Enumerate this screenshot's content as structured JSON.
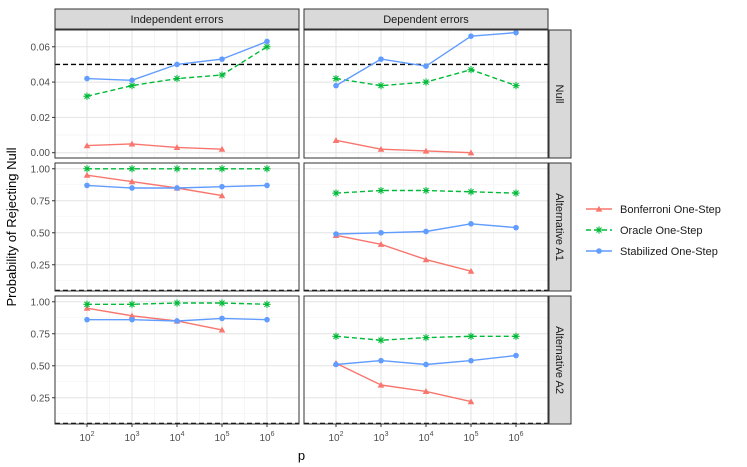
{
  "chart_data": {
    "type": "line",
    "xlabel": "p",
    "ylabel": "Probability of Rejecting Null",
    "column_facets": [
      "Independent errors",
      "Dependent errors"
    ],
    "row_facets": [
      "Null",
      "Alternative A1",
      "Alternative A2"
    ],
    "x": [
      "10^2",
      "10^3",
      "10^4",
      "10^5",
      "10^6"
    ],
    "x_tick_labels": [
      {
        "base": "10",
        "exp": "2"
      },
      {
        "base": "10",
        "exp": "3"
      },
      {
        "base": "10",
        "exp": "4"
      },
      {
        "base": "10",
        "exp": "5"
      },
      {
        "base": "10",
        "exp": "6"
      }
    ],
    "x_scale": "log10",
    "reference_line": {
      "value": 0.05,
      "style": "dashed",
      "color": "#000000"
    },
    "legend_placement": "right",
    "grid": true,
    "rows": [
      {
        "ylim": [
          -0.003,
          0.0695
        ],
        "y_ticks": [
          0,
          0.02,
          0.04,
          0.06
        ],
        "y_tick_labels": [
          "0.00",
          "0.02",
          "0.04",
          "0.06"
        ]
      },
      {
        "ylim": [
          0.045,
          1.045
        ],
        "y_ticks": [
          0.25,
          0.5,
          0.75,
          1.0
        ],
        "y_tick_labels": [
          "0.25",
          "0.50",
          "0.75",
          "1.00"
        ]
      },
      {
        "ylim": [
          0.045,
          1.045
        ],
        "y_ticks": [
          0.25,
          0.5,
          0.75,
          1.0
        ],
        "y_tick_labels": [
          "0.25",
          "0.50",
          "0.75",
          "1.00"
        ]
      }
    ],
    "series": [
      {
        "name": "Bonferroni One-Step",
        "color": "#F8766D",
        "line": "solid",
        "marker": "triangle"
      },
      {
        "name": "Oracle One-Step",
        "color": "#00BA38",
        "line": "dashed",
        "marker": "asterisk"
      },
      {
        "name": "Stabilized One-Step",
        "color": "#619CFF",
        "line": "solid",
        "marker": "circle"
      }
    ],
    "panels": [
      {
        "row": 0,
        "col": 0,
        "values": {
          "Bonferroni One-Step": [
            0.004,
            0.005,
            0.003,
            0.002,
            null
          ],
          "Oracle One-Step": [
            0.032,
            0.038,
            0.042,
            0.044,
            0.06
          ],
          "Stabilized One-Step": [
            0.042,
            0.041,
            0.05,
            0.053,
            0.063
          ]
        }
      },
      {
        "row": 0,
        "col": 1,
        "values": {
          "Bonferroni One-Step": [
            0.007,
            0.002,
            0.001,
            0.0,
            null
          ],
          "Oracle One-Step": [
            0.042,
            0.038,
            0.04,
            0.047,
            0.038
          ],
          "Stabilized One-Step": [
            0.038,
            0.053,
            0.049,
            0.066,
            0.068
          ]
        }
      },
      {
        "row": 1,
        "col": 0,
        "values": {
          "Bonferroni One-Step": [
            0.95,
            0.9,
            0.85,
            0.79,
            null
          ],
          "Oracle One-Step": [
            1.0,
            1.0,
            1.0,
            1.0,
            1.0
          ],
          "Stabilized One-Step": [
            0.87,
            0.85,
            0.85,
            0.86,
            0.87
          ]
        }
      },
      {
        "row": 1,
        "col": 1,
        "values": {
          "Bonferroni One-Step": [
            0.48,
            0.41,
            0.29,
            0.2,
            null
          ],
          "Oracle One-Step": [
            0.81,
            0.83,
            0.83,
            0.82,
            0.81
          ],
          "Stabilized One-Step": [
            0.49,
            0.5,
            0.51,
            0.57,
            0.54
          ]
        }
      },
      {
        "row": 2,
        "col": 0,
        "values": {
          "Bonferroni One-Step": [
            0.95,
            0.89,
            0.85,
            0.78,
            null
          ],
          "Oracle One-Step": [
            0.98,
            0.98,
            0.99,
            0.99,
            0.98
          ],
          "Stabilized One-Step": [
            0.86,
            0.86,
            0.85,
            0.87,
            0.86
          ]
        }
      },
      {
        "row": 2,
        "col": 1,
        "values": {
          "Bonferroni One-Step": [
            0.52,
            0.35,
            0.3,
            0.22,
            null
          ],
          "Oracle One-Step": [
            0.73,
            0.7,
            0.72,
            0.73,
            0.73
          ],
          "Stabilized One-Step": [
            0.51,
            0.54,
            0.51,
            0.54,
            0.58
          ]
        }
      }
    ]
  }
}
